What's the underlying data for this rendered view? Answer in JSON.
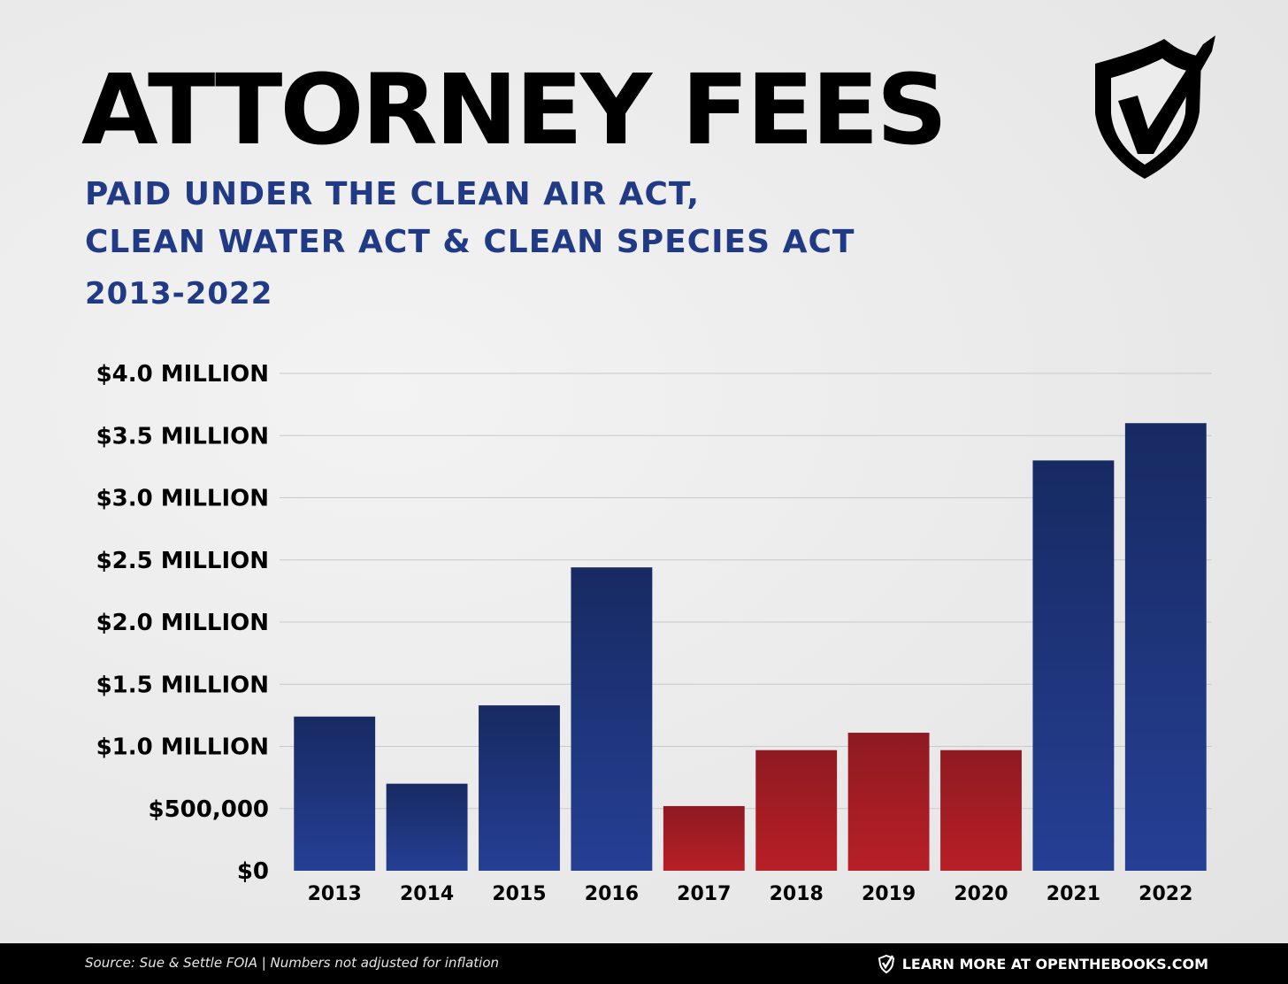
{
  "header": {
    "title": "ATTORNEY FEES",
    "subtitle_line1": "PAID UNDER THE CLEAN AIR ACT,",
    "subtitle_line2": "CLEAN WATER ACT & CLEAN SPECIES ACT",
    "subtitle_line3": "2013-2022"
  },
  "logo": {
    "icon": "shield-checkmark-icon"
  },
  "colors": {
    "title": "#000000",
    "subtitle": "#203a86",
    "bar_blue_top": "#172a62",
    "bar_blue_bottom": "#263f94",
    "bar_red_top": "#8e1a22",
    "bar_red_bottom": "#b81f26",
    "gridline": "#c9c9c9",
    "footer_bg": "#000000"
  },
  "chart_data": {
    "type": "bar",
    "categories": [
      "2013",
      "2014",
      "2015",
      "2016",
      "2017",
      "2018",
      "2019",
      "2020",
      "2021",
      "2022"
    ],
    "values": [
      1240000,
      700000,
      1330000,
      2440000,
      520000,
      970000,
      1110000,
      970000,
      3300000,
      3600000
    ],
    "bar_colors": [
      "blue",
      "blue",
      "blue",
      "blue",
      "red",
      "red",
      "red",
      "red",
      "blue",
      "blue"
    ],
    "ylim": [
      0,
      4000000
    ],
    "yticks": [
      0,
      500000,
      1000000,
      1500000,
      2000000,
      2500000,
      3000000,
      3500000,
      4000000
    ],
    "ytick_labels": [
      "$0",
      "$500,000",
      "$1.0 MILLION",
      "$1.5 MILLION",
      "$2.0 MILLION",
      "$2.5 MILLION",
      "$3.0 MILLION",
      "$3.5 MILLION",
      "$4.0 MILLION"
    ],
    "grid": true,
    "legend": "none",
    "title": "",
    "xlabel": "",
    "ylabel": ""
  },
  "footer": {
    "source": "Source: Sue & Settle FOIA | Numbers not adjusted for inflation",
    "cta_icon": "shield-checkmark-icon",
    "cta": "LEARN MORE AT OPENTHEBOOKS.COM"
  }
}
